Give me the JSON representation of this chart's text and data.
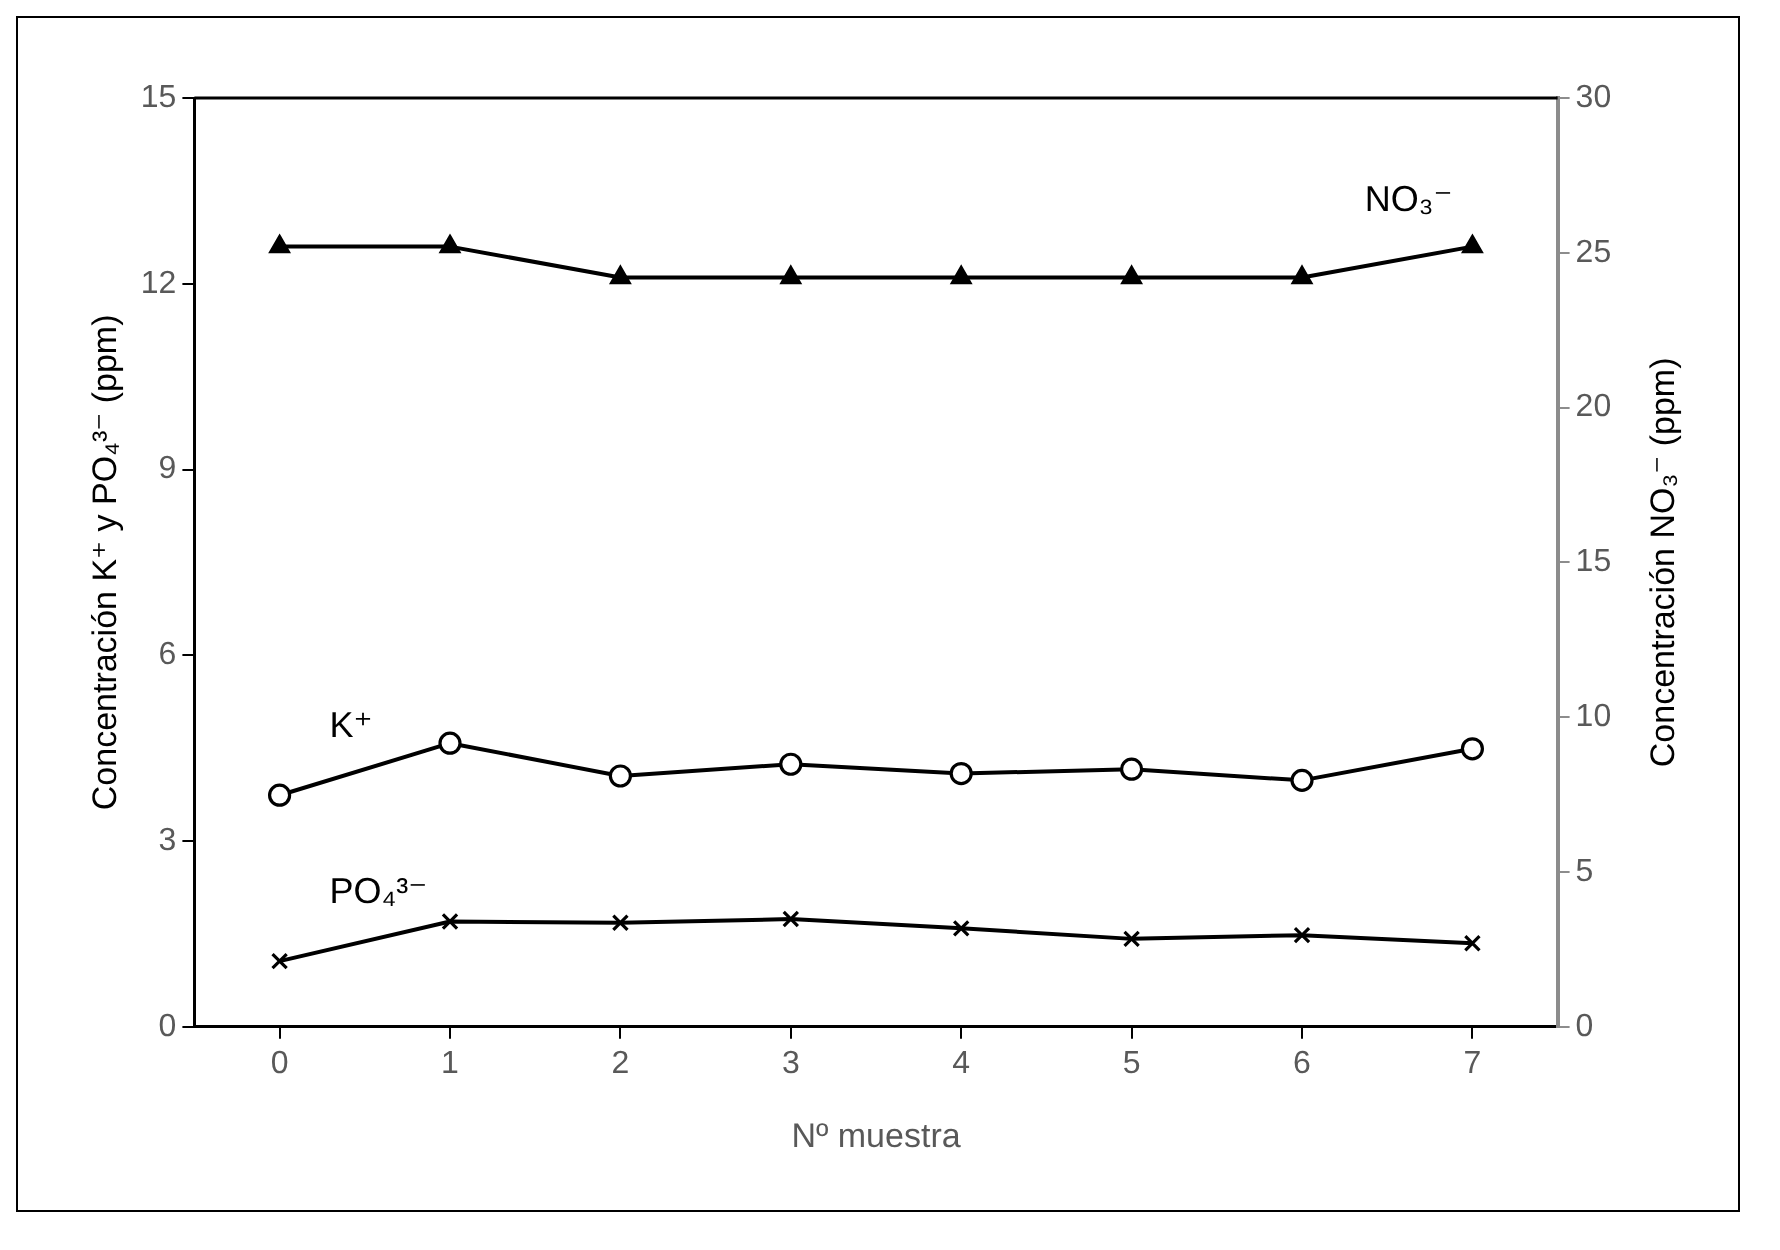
{
  "chart_data": {
    "type": "line",
    "xlabel": "Nº muestra",
    "ylabel": "Concentración K⁺ y PO₄³⁻ (ppm)",
    "y2label": "Concentración NO₃⁻ (ppm)",
    "categories": [
      "0",
      "1",
      "2",
      "3",
      "4",
      "5",
      "6",
      "7"
    ],
    "series": [
      {
        "name": "NO₃⁻",
        "color": "#000000",
        "axis": "y2",
        "marker": "triangle",
        "values": [
          25.2,
          25.2,
          24.2,
          24.2,
          24.2,
          24.2,
          24.2,
          25.2
        ]
      },
      {
        "name": "K⁺",
        "color": "#000000",
        "marker": "circle",
        "values": [
          3.74,
          4.58,
          4.05,
          4.24,
          4.09,
          4.16,
          3.98,
          4.49
        ]
      },
      {
        "name": "PO₄³⁻",
        "color": "#000000",
        "marker": "cross",
        "values": [
          1.06,
          1.7,
          1.68,
          1.74,
          1.59,
          1.42,
          1.48,
          1.35
        ]
      }
    ],
    "ylim": [
      0,
      15
    ],
    "yticks": [
      0,
      3,
      6,
      9,
      12,
      15
    ],
    "y2lim": [
      0,
      30
    ],
    "y2ticks": [
      0,
      5,
      10,
      15,
      20,
      25,
      30
    ],
    "grid": false,
    "legend": false,
    "line_style": "solid"
  }
}
